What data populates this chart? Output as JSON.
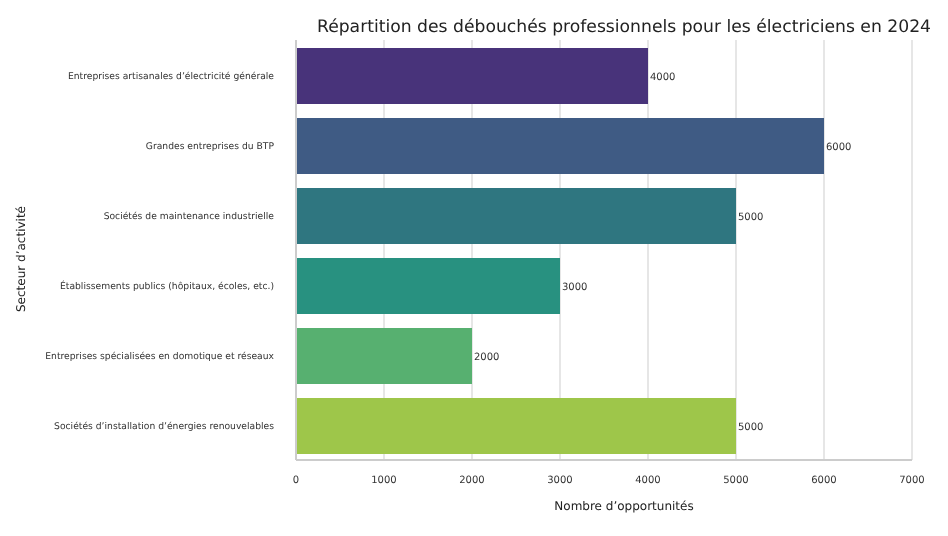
{
  "chart_data": {
    "type": "bar",
    "orientation": "horizontal",
    "title": "Répartition des débouchés professionnels pour les électriciens en 2024",
    "xlabel": "Nombre d’opportunités",
    "ylabel": "Secteur d’activité",
    "categories": [
      "Entreprises artisanales d’électricité générale",
      "Grandes entreprises du BTP",
      "Sociétés de maintenance industrielle",
      "Établissements publics (hôpitaux, écoles, etc.)",
      "Entreprises spécialisées en domotique et réseaux",
      "Sociétés d’installation d’énergies renouvelables"
    ],
    "values": [
      4000,
      6000,
      5000,
      3000,
      2000,
      5000
    ],
    "colors": [
      "#48337a",
      "#3f5b84",
      "#2f7680",
      "#289180",
      "#57b070",
      "#9ec64a"
    ],
    "xlim": [
      0,
      7000
    ],
    "xticks": [
      0,
      1000,
      2000,
      3000,
      4000,
      5000,
      6000,
      7000
    ],
    "grid": "x",
    "data_labels": true
  }
}
